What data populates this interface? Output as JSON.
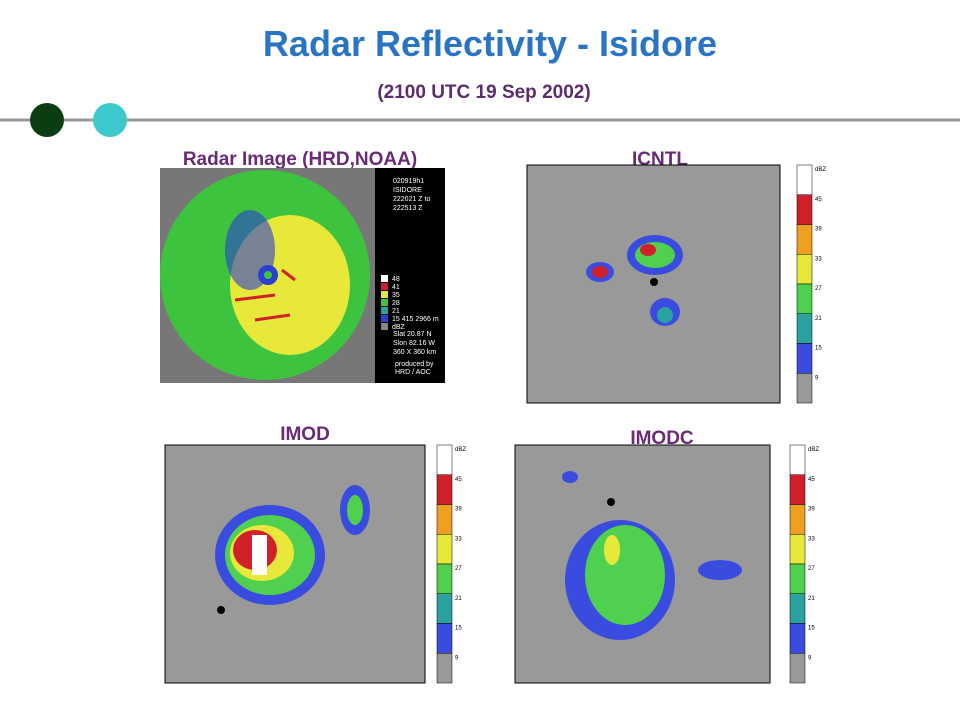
{
  "header": {
    "title": "Radar Reflectivity - Isidore",
    "subtitle": "(2100 UTC 19  Sep 2002)"
  },
  "panels": [
    {
      "label": "Radar Image (HRD,NOAA)"
    },
    {
      "label": "ICNTL"
    },
    {
      "label": "IMOD"
    },
    {
      "label": "IMODC"
    }
  ],
  "radar_sidebar": {
    "info": [
      "020919h1",
      "ISIDORE",
      "222021 Z to",
      "222513 Z"
    ],
    "legend": [
      "48",
      "41",
      "35",
      "28",
      "21",
      "15  415  2966 m",
      "dBZ"
    ],
    "position": [
      "Slat  20.87 N",
      "Slon  82.16 W",
      "360 X 360 km"
    ],
    "credit": [
      "produced by",
      "HRD / AOC"
    ]
  },
  "colorbar_labels": [
    "dBZ",
    "45",
    "39",
    "33",
    "27",
    "21",
    "15",
    "9"
  ]
}
